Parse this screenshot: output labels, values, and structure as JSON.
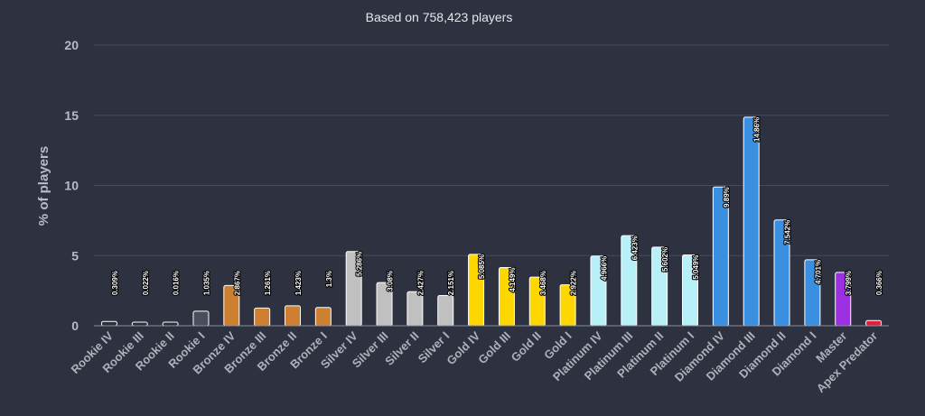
{
  "chart_data": {
    "type": "bar",
    "subtitle": "Based on 758,423 players",
    "ylabel": "% of players",
    "xlabel": "",
    "ylim": [
      0,
      20
    ],
    "yticks": [
      0,
      5,
      10,
      15,
      20
    ],
    "grid": true,
    "categories": [
      "Rookie IV",
      "Rookie III",
      "Rookie II",
      "Rookie I",
      "Bronze IV",
      "Bronze III",
      "Bronze II",
      "Bronze I",
      "Silver IV",
      "Silver III",
      "Silver II",
      "Silver I",
      "Gold IV",
      "Gold III",
      "Gold II",
      "Gold I",
      "Platinum IV",
      "Platinum III",
      "Platinum II",
      "Platinum I",
      "Diamond IV",
      "Diamond III",
      "Diamond II",
      "Diamond I",
      "Master",
      "Apex Predator"
    ],
    "values": [
      0.309,
      0.022,
      0.016,
      1.035,
      2.867,
      1.261,
      1.423,
      1.3,
      5.286,
      3.08,
      2.427,
      2.151,
      5.085,
      4.149,
      3.468,
      2.922,
      4.966,
      6.423,
      5.602,
      5.049,
      9.89,
      14.86,
      7.542,
      4.701,
      3.799,
      0.366
    ],
    "data_labels": [
      "0.309%",
      "0.022%",
      "0.016%",
      "1.035%",
      "2.867%",
      "1.261%",
      "1.423%",
      "1.3%",
      "5.286%",
      "3.08%",
      "2.427%",
      "2.151%",
      "5.085%",
      "4.149%",
      "3.468%",
      "2.922%",
      "4.966%",
      "6.423%",
      "5.602%",
      "5.049%",
      "9.89%",
      "14.86%",
      "7.542%",
      "4.701%",
      "3.799%",
      "0.366%"
    ],
    "colors": [
      "#2b2f3d",
      "#2b2f3d",
      "#2b2f3d",
      "#4a4e5c",
      "#cd7f32",
      "#cd7f32",
      "#cd7f32",
      "#cd7f32",
      "#c0c0c0",
      "#c0c0c0",
      "#c0c0c0",
      "#c0c0c0",
      "#ffd700",
      "#ffd700",
      "#ffd700",
      "#ffd700",
      "#b8f0f8",
      "#b8f0f8",
      "#b8f0f8",
      "#b8f0f8",
      "#3a8fe0",
      "#3a8fe0",
      "#3a8fe0",
      "#3a8fe0",
      "#9b30e0",
      "#e0203a"
    ]
  }
}
